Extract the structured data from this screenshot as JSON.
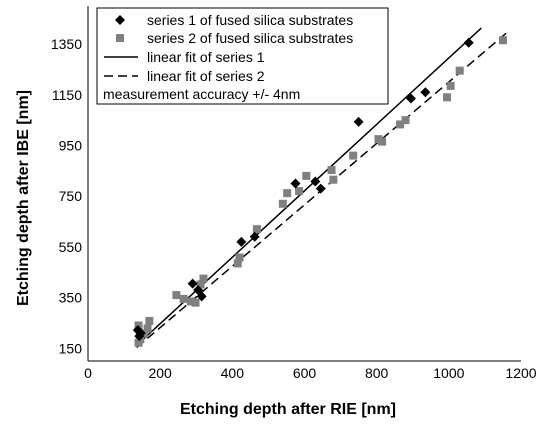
{
  "chart_data": {
    "type": "scatter",
    "title": "",
    "xlabel": "Etching depth after RIE [nm]",
    "ylabel": "Etching depth after IBE [nm]",
    "xlim": [
      0,
      1200
    ],
    "ylim": [
      100,
      1500
    ],
    "x_ticks": [
      0,
      200,
      400,
      600,
      800,
      1000,
      1200
    ],
    "y_ticks": [
      150,
      350,
      550,
      750,
      950,
      1150,
      1350
    ],
    "grid": false,
    "legend_position": "top-left",
    "series": [
      {
        "name": "series 1 of fused silica substrates",
        "marker": "diamond",
        "color": "#000000",
        "x": [
          138,
          142,
          146,
          290,
          305,
          315,
          425,
          462,
          575,
          630,
          645,
          750,
          895,
          935,
          1055
        ],
        "y": [
          222,
          198,
          210,
          405,
          380,
          355,
          570,
          590,
          800,
          808,
          780,
          1043,
          1135,
          1160,
          1355
        ]
      },
      {
        "name": "series 2 of fused silica substrates",
        "marker": "square",
        "color": "#808080",
        "x": [
          140,
          140,
          145,
          155,
          165,
          170,
          245,
          265,
          285,
          298,
          312,
          320,
          415,
          420,
          468,
          540,
          552,
          585,
          605,
          675,
          680,
          735,
          805,
          815,
          865,
          880,
          995,
          1005,
          1030,
          1150
        ],
        "y": [
          240,
          172,
          186,
          208,
          228,
          258,
          360,
          345,
          335,
          330,
          402,
          425,
          485,
          508,
          620,
          720,
          762,
          770,
          830,
          853,
          815,
          910,
          975,
          965,
          1033,
          1050,
          1140,
          1185,
          1245,
          1365
        ]
      }
    ],
    "fits": [
      {
        "name": "linear fit of series 1",
        "style": "solid",
        "color": "#000000",
        "x": [
          135,
          1090
        ],
        "y": [
          162,
          1413
        ]
      },
      {
        "name": "linear fit of series 2",
        "style": "dashed",
        "color": "#000000",
        "x": [
          135,
          1160
        ],
        "y": [
          153,
          1394
        ]
      }
    ],
    "note": "measurement accuracy +/- 4nm"
  }
}
